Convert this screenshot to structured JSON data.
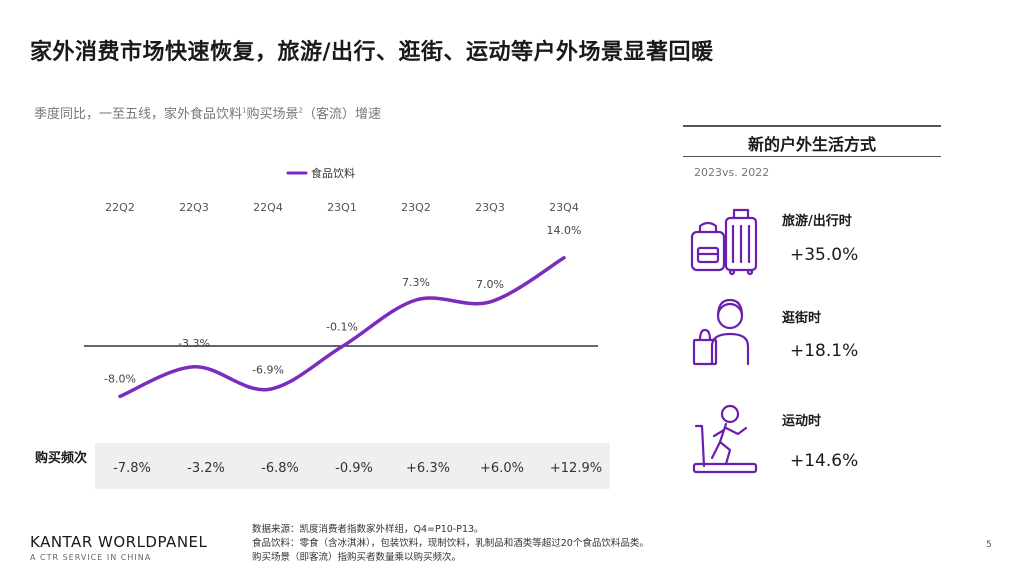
{
  "title": "家外消费市场快速恢复，旅游/出行、逛街、运动等户外场景显著回暖",
  "subtitle": {
    "main": "季度同比，一至五线，家外食品饮料",
    "sup1": "1",
    "mid": "购买场景",
    "sup2": "2",
    "tail": "（客流）增速"
  },
  "chart_data": {
    "type": "line",
    "legend": "食品饮料",
    "categories": [
      "22Q2",
      "22Q3",
      "22Q4",
      "23Q1",
      "23Q2",
      "23Q3",
      "23Q4"
    ],
    "series": [
      {
        "name": "食品饮料",
        "values": [
          -8.0,
          -3.3,
          -6.9,
          -0.1,
          7.3,
          7.0,
          14.0
        ],
        "labels": [
          "-8.0%",
          "-3.3%",
          "-6.9%",
          "-0.1%",
          "7.3%",
          "7.0%",
          "14.0%"
        ]
      }
    ],
    "frequency_label": "购买频次",
    "frequency": [
      "-7.8%",
      "-3.2%",
      "-6.8%",
      "-0.9%",
      "+6.3%",
      "+6.0%",
      "+12.9%"
    ],
    "color": "#7b2cbf"
  },
  "panel": {
    "title": "新的户外生活方式",
    "period": "2023vs. 2022",
    "items": [
      {
        "name": "旅游/出行时",
        "value": "+35.0%",
        "icon": "luggage-icon"
      },
      {
        "name": "逛街时",
        "value": "+18.1%",
        "icon": "shopper-icon"
      },
      {
        "name": "运动时",
        "value": "+14.6%",
        "icon": "treadmill-icon"
      }
    ],
    "icon_color": "#6a1fb0"
  },
  "footer": {
    "logo": "KANTAR WORLDPANEL",
    "logo_sub": "A CTR SERVICE IN CHINA",
    "notes": [
      "数据来源：凯度消费者指数家外样组，Q4=P10-P13。",
      "食品饮料：零食（含冰淇淋），包装饮料，现制饮料，乳制品和酒类等超过20个食品饮料品类。",
      "购买场景（即客流）指购买者数量乘以购买频次。"
    ],
    "page": "5"
  }
}
